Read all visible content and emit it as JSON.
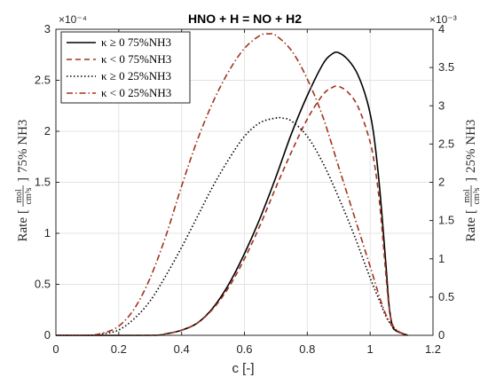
{
  "chart_data": {
    "type": "line",
    "title": "HNO + H = NO + H2",
    "xlabel": "c [-]",
    "ylabel_left": "Rate [mol/(cm³s)] 75% NH3",
    "ylabel_right": "Rate [mol/(cm³s)] 25% NH3",
    "ylabel_left_prefix": "Rate",
    "ylabel_left_suffix": "75% NH3",
    "ylabel_right_prefix": "Rate",
    "ylabel_right_suffix": "25% NH3",
    "unit_num": "mol",
    "unit_den": "cm³s",
    "xlim": [
      0,
      1.2
    ],
    "ylim_left": [
      0,
      3
    ],
    "ylim_right": [
      0,
      4
    ],
    "left_multiplier": "×10⁻⁴",
    "right_multiplier": "×10⁻³",
    "x_ticks": [
      "0",
      "0.2",
      "0.4",
      "0.6",
      "0.8",
      "1",
      "1.2"
    ],
    "y_ticks_left": [
      "0",
      "0.5",
      "1",
      "1.5",
      "2",
      "2.5",
      "3"
    ],
    "y_ticks_right": [
      "0",
      "0.5",
      "1",
      "1.5",
      "2",
      "2.5",
      "3",
      "3.5",
      "4"
    ],
    "grid": true,
    "legend_position": "top-left",
    "series": [
      {
        "name": "κ ≥ 0 75%NH3",
        "axis": "left",
        "color": "#000000",
        "dash": "solid",
        "x": [
          0.0,
          0.3,
          0.35,
          0.4,
          0.45,
          0.5,
          0.55,
          0.6,
          0.65,
          0.7,
          0.75,
          0.8,
          0.85,
          0.88,
          0.9,
          0.93,
          0.96,
          0.99,
          1.01,
          1.03,
          1.05,
          1.06,
          1.07,
          1.08,
          1.1,
          1.12
        ],
        "y": [
          0.0,
          0.0,
          0.015,
          0.05,
          0.12,
          0.27,
          0.5,
          0.8,
          1.15,
          1.55,
          1.98,
          2.35,
          2.66,
          2.76,
          2.77,
          2.7,
          2.56,
          2.3,
          2.0,
          1.45,
          0.7,
          0.3,
          0.1,
          0.05,
          0.02,
          0.0
        ]
      },
      {
        "name": "κ < 0 75%NH3",
        "axis": "left",
        "color": "#a0331c",
        "dash": "6,4",
        "x": [
          0.0,
          0.3,
          0.35,
          0.4,
          0.45,
          0.5,
          0.55,
          0.6,
          0.65,
          0.7,
          0.75,
          0.8,
          0.85,
          0.88,
          0.9,
          0.93,
          0.96,
          0.99,
          1.01,
          1.03,
          1.05,
          1.06,
          1.07,
          1.08,
          1.1,
          1.12
        ],
        "y": [
          0.0,
          0.0,
          0.015,
          0.05,
          0.12,
          0.26,
          0.47,
          0.75,
          1.08,
          1.45,
          1.8,
          2.12,
          2.36,
          2.43,
          2.44,
          2.38,
          2.25,
          2.0,
          1.75,
          1.3,
          0.6,
          0.28,
          0.12,
          0.06,
          0.02,
          0.0
        ]
      },
      {
        "name": "κ ≥ 0 25%NH3",
        "axis": "right",
        "color": "#000000",
        "dash": "1.5,2.5",
        "x": [
          0.0,
          0.1,
          0.15,
          0.2,
          0.25,
          0.3,
          0.35,
          0.4,
          0.45,
          0.5,
          0.55,
          0.6,
          0.65,
          0.7,
          0.72,
          0.75,
          0.8,
          0.85,
          0.9,
          0.95,
          1.0,
          1.03,
          1.05,
          1.07,
          1.09,
          1.12
        ],
        "y": [
          0.0,
          0.0,
          0.02,
          0.07,
          0.22,
          0.45,
          0.78,
          1.15,
          1.55,
          1.95,
          2.3,
          2.6,
          2.78,
          2.84,
          2.84,
          2.8,
          2.6,
          2.25,
          1.8,
          1.3,
          0.75,
          0.45,
          0.25,
          0.12,
          0.05,
          0.0
        ]
      },
      {
        "name": "κ < 0 25%NH3",
        "axis": "right",
        "color": "#a0331c",
        "dash": "7,3,1.5,3",
        "x": [
          0.0,
          0.1,
          0.15,
          0.2,
          0.25,
          0.3,
          0.35,
          0.4,
          0.45,
          0.5,
          0.55,
          0.6,
          0.65,
          0.68,
          0.7,
          0.75,
          0.8,
          0.85,
          0.9,
          0.95,
          1.0,
          1.03,
          1.05,
          1.07,
          1.09,
          1.12
        ],
        "y": [
          0.0,
          0.0,
          0.03,
          0.12,
          0.35,
          0.75,
          1.3,
          1.95,
          2.55,
          3.05,
          3.45,
          3.75,
          3.92,
          3.94,
          3.92,
          3.72,
          3.35,
          2.85,
          2.2,
          1.55,
          0.9,
          0.5,
          0.27,
          0.13,
          0.05,
          0.0
        ]
      }
    ]
  }
}
